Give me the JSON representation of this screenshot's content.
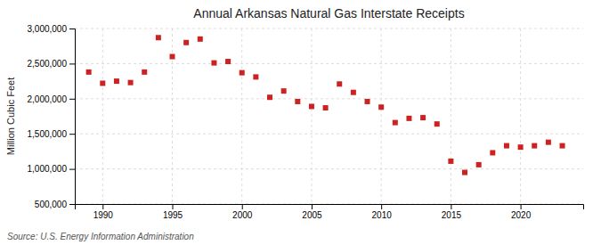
{
  "chart_data": {
    "type": "scatter",
    "title": "Annual Arkansas Natural Gas Interstate Receipts",
    "ylabel": "Million Cubic Feet",
    "annotations": [
      "Source: U.S. Energy Information Administration"
    ],
    "x": [
      1989,
      1990,
      1991,
      1992,
      1993,
      1994,
      1995,
      1996,
      1997,
      1998,
      1999,
      2000,
      2001,
      2002,
      2003,
      2004,
      2005,
      2006,
      2007,
      2008,
      2009,
      2010,
      2011,
      2012,
      2013,
      2014,
      2015,
      2016,
      2017,
      2018,
      2019,
      2020,
      2021,
      2022,
      2023
    ],
    "values": [
      2380000,
      2220000,
      2250000,
      2230000,
      2380000,
      2870000,
      2600000,
      2800000,
      2850000,
      2510000,
      2530000,
      2370000,
      2310000,
      2020000,
      2110000,
      1960000,
      1890000,
      1870000,
      2210000,
      2090000,
      1960000,
      1880000,
      1660000,
      1720000,
      1730000,
      1640000,
      1110000,
      950000,
      1060000,
      1230000,
      1330000,
      1310000,
      1330000,
      1380000,
      1330000
    ],
    "color": "#cc2222",
    "marker": "square",
    "xlim": [
      1988.0,
      2024.5
    ],
    "xticks": [
      1990,
      1995,
      2000,
      2005,
      2010,
      2015,
      2020
    ],
    "ylim": [
      500000,
      3000000
    ],
    "yticks": [
      {
        "value": 500000,
        "label": "500,000"
      },
      {
        "value": 1000000,
        "label": "1,000,000"
      },
      {
        "value": 1500000,
        "label": "1,500,000"
      },
      {
        "value": 2000000,
        "label": "2,000,000"
      },
      {
        "value": 2500000,
        "label": "2,500,000"
      },
      {
        "value": 3000000,
        "label": "3,000,000"
      }
    ],
    "grid": true
  }
}
